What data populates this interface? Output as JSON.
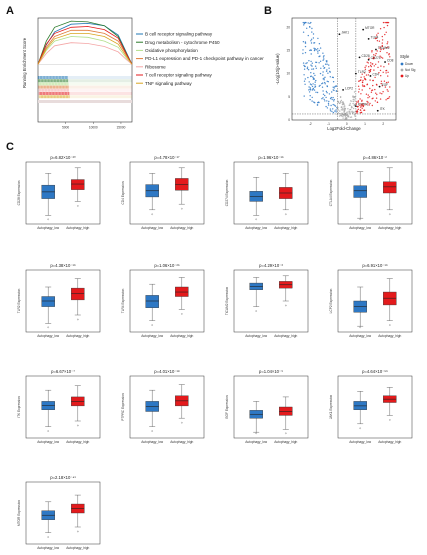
{
  "panels": {
    "a": "A",
    "b": "B",
    "c": "C"
  },
  "chart_data": [
    {
      "type": "line",
      "panel": "A",
      "ylabel": "Running Enrichment Score",
      "x_ticks": [
        "5000",
        "10000",
        "15000"
      ],
      "x_range": [
        0,
        17000
      ],
      "y_range": [
        -0.1,
        0.6
      ],
      "series": [
        {
          "name": "B cell receptor signaling pathway",
          "color": "#1f77b4",
          "x": [
            0,
            1500,
            3000,
            6000,
            9000,
            12000,
            14500,
            16000,
            17000
          ],
          "y": [
            0,
            0.25,
            0.42,
            0.52,
            0.53,
            0.5,
            0.38,
            0.15,
            0
          ]
        },
        {
          "name": "Drug metabolism - cytochrome P450",
          "color": "#2a7a2a",
          "x": [
            0,
            1500,
            3000,
            6000,
            9000,
            12000,
            14500,
            16000,
            17000
          ],
          "y": [
            0,
            0.3,
            0.48,
            0.56,
            0.55,
            0.5,
            0.36,
            0.14,
            0
          ]
        },
        {
          "name": "Oxidative phosphorylation",
          "color": "#b2df8a",
          "x": [
            0,
            1500,
            3000,
            6000,
            9000,
            12000,
            14500,
            16000,
            17000
          ],
          "y": [
            0,
            0.18,
            0.3,
            0.36,
            0.35,
            0.3,
            0.22,
            0.08,
            0
          ]
        },
        {
          "name": "PD-L1 expression and PD-1 checkpoint pathway in cancer",
          "color": "#e07b39",
          "x": [
            0,
            1500,
            3000,
            6000,
            9000,
            12000,
            14500,
            16000,
            17000
          ],
          "y": [
            0,
            0.22,
            0.36,
            0.44,
            0.44,
            0.4,
            0.3,
            0.12,
            0
          ]
        },
        {
          "name": "Ribosome",
          "color": "#f4a6a6",
          "x": [
            0,
            1500,
            3000,
            6000,
            9000,
            12000,
            14500,
            16000,
            17000
          ],
          "y": [
            0,
            0.14,
            0.24,
            0.28,
            0.27,
            0.23,
            0.16,
            0.06,
            0
          ]
        },
        {
          "name": "T cell receptor signaling pathway",
          "color": "#e31a1c",
          "x": [
            0,
            1500,
            3000,
            6000,
            9000,
            12000,
            14500,
            16000,
            17000
          ],
          "y": [
            0,
            0.26,
            0.4,
            0.48,
            0.49,
            0.45,
            0.34,
            0.13,
            0
          ]
        },
        {
          "name": "TNF signaling pathway",
          "color": "#d9a520",
          "x": [
            0,
            1500,
            3000,
            6000,
            9000,
            12000,
            14500,
            16000,
            17000
          ],
          "y": [
            0,
            0.2,
            0.33,
            0.4,
            0.4,
            0.36,
            0.26,
            0.1,
            0
          ]
        }
      ]
    },
    {
      "type": "scatter",
      "panel": "B",
      "xlabel": "Log2Fold-Change",
      "ylabel": "-Log(10(p-value)",
      "x_ticks": [
        "-2",
        "-1",
        "0",
        "1",
        "2"
      ],
      "y_ticks": [
        "0",
        "5",
        "10",
        "15",
        "20"
      ],
      "x_range": [
        -3,
        2.7
      ],
      "y_range": [
        0,
        22
      ],
      "legend_title": "Style",
      "legend": [
        {
          "label": "Down",
          "color": "#2e78c4"
        },
        {
          "label": "Not Sig",
          "color": "#aaaaaa"
        },
        {
          "label": "Up",
          "color": "#e31a1c"
        }
      ],
      "labeled_genes": [
        {
          "gene": "MTOR",
          "x": 0.9,
          "y": 19.5
        },
        {
          "gene": "JAK1",
          "x": -0.4,
          "y": 18.5
        },
        {
          "gene": "TLR4",
          "x": 1.2,
          "y": 17.5
        },
        {
          "gene": "TICAM2",
          "x": 1.6,
          "y": 15.2
        },
        {
          "gene": "CD28",
          "x": 0.7,
          "y": 13.5
        },
        {
          "gene": "CD274",
          "x": 1.2,
          "y": 13.0
        },
        {
          "gene": "CD8",
          "x": 2.1,
          "y": 12.5
        },
        {
          "gene": "TLR2",
          "x": 0.5,
          "y": 10.0
        },
        {
          "gene": "CD4",
          "x": 1.3,
          "y": 9.5
        },
        {
          "gene": "LCP2",
          "x": -0.2,
          "y": 6.5
        },
        {
          "gene": "EGF",
          "x": 1.8,
          "y": 7.2
        },
        {
          "gene": "PTPRC",
          "x": 0.5,
          "y": 3.0
        },
        {
          "gene": "ITK",
          "x": 1.7,
          "y": 2.0
        }
      ]
    },
    {
      "type": "box",
      "panel": "C",
      "groups": [
        "Autophagy_low",
        "Autophagy_high"
      ],
      "group_colors": [
        "#2e78c4",
        "#e31a1c"
      ],
      "plots": [
        {
          "gene": "CD28",
          "ylabel": "CD28 Expression",
          "pvalue": "p=6.82×10⁻²⁰",
          "low": [
            1,
            4,
            5.2,
            6.4,
            8.5
          ],
          "high": [
            3.5,
            5.6,
            6.6,
            7.4,
            9.5
          ]
        },
        {
          "gene": "CD4",
          "ylabel": "CD4 Expression",
          "pvalue": "p=4.78×10⁻¹⁷",
          "low": [
            2,
            4.3,
            5.4,
            6.5,
            8.5
          ],
          "high": [
            3,
            5.5,
            6.5,
            7.6,
            9.5
          ]
        },
        {
          "gene": "CD274",
          "ylabel": "CD274 Expression",
          "pvalue": "p=1.96×10⁻¹⁵",
          "low": [
            1,
            3.5,
            4.4,
            5.3,
            7.8
          ],
          "high": [
            2,
            4.0,
            5.0,
            6.0,
            8.5
          ]
        },
        {
          "gene": "CTLA4",
          "ylabel": "CTLA4 Expression",
          "pvalue": "p=4.86×10⁻²",
          "low": [
            0.5,
            4.2,
            5.4,
            6.3,
            8.8
          ],
          "high": [
            2,
            5.0,
            6.1,
            7.0,
            9.5
          ]
        },
        {
          "gene": "TLR2",
          "ylabel": "TLR2 Expression",
          "pvalue": "p=4.38×10⁻¹⁶",
          "low": [
            1,
            4.0,
            5.0,
            5.8,
            7.5
          ],
          "high": [
            2.5,
            5.2,
            6.3,
            7.3,
            9.0
          ]
        },
        {
          "gene": "TLR4",
          "ylabel": "TLR4 Expression",
          "pvalue": "p=1.06×10⁻²⁵",
          "low": [
            1.5,
            3.8,
            5.0,
            6.0,
            8.0
          ],
          "high": [
            3.5,
            5.8,
            6.6,
            7.5,
            9.2
          ]
        },
        {
          "gene": "TICAM2",
          "ylabel": "TICAM2 Expression",
          "pvalue": "p=4.29×10⁻³",
          "low": [
            4,
            7.0,
            7.6,
            8.2,
            9.2
          ],
          "high": [
            5,
            7.3,
            7.9,
            8.5,
            9.5
          ]
        },
        {
          "gene": "LCP2",
          "ylabel": "LCP2 Expression",
          "pvalue": "p=6.91×10⁻¹⁶",
          "low": [
            0.5,
            3.0,
            4.0,
            5.0,
            7.5
          ],
          "high": [
            1.5,
            4.3,
            5.5,
            6.6,
            9.0
          ]
        },
        {
          "gene": "ITK",
          "ylabel": "ITK Expression",
          "pvalue": "p=6.67×10⁻⁷",
          "low": [
            1.5,
            4.5,
            5.3,
            6.0,
            8.0
          ],
          "high": [
            2.5,
            5.2,
            6.0,
            6.8,
            8.8
          ]
        },
        {
          "gene": "PTPRC",
          "ylabel": "PTPRC Expression",
          "pvalue": "p=4.01×10⁻¹⁸",
          "low": [
            1.5,
            4.2,
            5.1,
            6.0,
            8.0
          ],
          "high": [
            3,
            5.2,
            6.1,
            7.0,
            9.0
          ]
        },
        {
          "gene": "EGF",
          "ylabel": "EGF Expression",
          "pvalue": "p=1.04×10⁻⁹",
          "low": [
            0.5,
            3.0,
            3.7,
            4.4,
            6.0
          ],
          "high": [
            1,
            3.5,
            4.2,
            5.0,
            6.8
          ]
        },
        {
          "gene": "JAK1",
          "ylabel": "JAK1 Expression",
          "pvalue": "p=4.64×10⁻⁵⁶",
          "low": [
            2,
            4.5,
            5.2,
            6.0,
            7.8
          ],
          "high": [
            3.5,
            5.8,
            6.4,
            7.0,
            8.5
          ]
        },
        {
          "gene": "MTOR",
          "ylabel": "MTOR Expression",
          "pvalue": "p=2.18×10⁻⁴¹",
          "low": [
            1.5,
            3.8,
            4.6,
            5.4,
            7.0
          ],
          "high": [
            2.5,
            5.0,
            5.8,
            6.6,
            8.2
          ]
        }
      ]
    }
  ]
}
